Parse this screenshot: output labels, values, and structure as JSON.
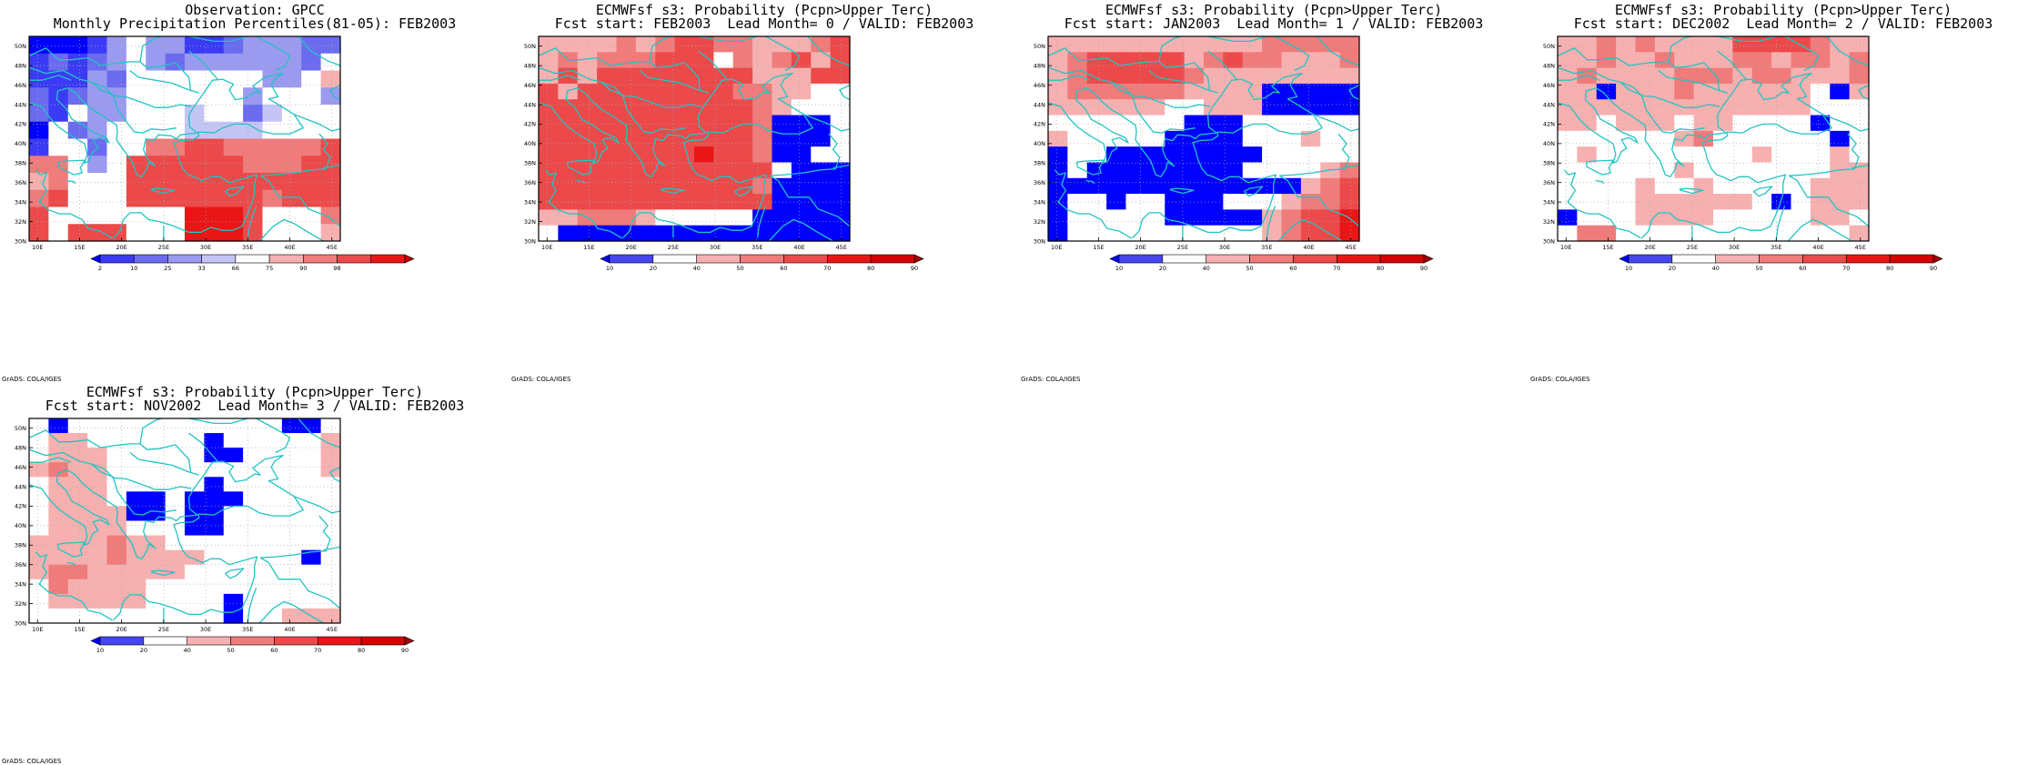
{
  "colors": {
    "coast": "#22c3c3",
    "grid": "#aaaaaa",
    "obs_scale": [
      "#0000ff",
      "#3b3bf5",
      "#6b6bf0",
      "#9a9af0",
      "#c4c4f5",
      "#ffffff",
      "#f7b0b0",
      "#f07b7b",
      "#ec4a4a",
      "#e81616",
      "#c00000"
    ],
    "prob_scale": [
      "#0000ff",
      "#4646f0",
      "#ffffff",
      "#f7b0b0",
      "#f07b7b",
      "#ec4a4a",
      "#e81616",
      "#d40000",
      "#a00000"
    ]
  },
  "map": {
    "lon_ticks": [
      "10E",
      "15E",
      "20E",
      "25E",
      "30E",
      "35E",
      "40E",
      "45E"
    ],
    "lat_ticks": [
      "30N",
      "32N",
      "34N",
      "36N",
      "38N",
      "40N",
      "42N",
      "44N",
      "46N",
      "48N",
      "50N"
    ],
    "credit": "GrADS: COLA/IGES"
  },
  "panels": [
    {
      "id": "obs",
      "title1": "Observation: GPCC",
      "title2": "Monthly Precipitation Percentiles(81-05): FEB2003",
      "cbar_labels": [
        "2",
        "10",
        "25",
        "33",
        "66",
        "75",
        "90",
        "98"
      ],
      "scale": "obs",
      "grid": [
        "AAABDFDDBBCDDDCC",
        "BCBCDFDCDDDDDDCF",
        "BBBDCFFFFFFFDDFG",
        "CBCDDFFFFFFDFFFD",
        "CBFDDFFFEFFCEFFF",
        "AFCDFFFFEEEEFFFF",
        "BFFCFFHHIIHHHHHI",
        "HHFDFIIIIIIHHHII",
        "GHFFFIIIIIIIIIII",
        "HIFFFIIIIIIIHIII",
        "IFFFFFFFJJJIFFFH",
        "IFIIIFFFJJJIFFFG"
      ]
    },
    {
      "id": "lm0",
      "title1": "ECMWFsf s3: Probability (Pcpn>Upper Terc)",
      "title2": "Fcst start: FEB2003  Lead Month= 0 / VALID: FEB2003",
      "cbar_labels": [
        "10",
        "20",
        "40",
        "50",
        "60",
        "70",
        "80",
        "90"
      ],
      "scale": "prob",
      "grid": [
        "DDDDEDEFFEEDDDEF",
        "DEDEEEFFFCEDEFDF",
        "DFDFFFFFFFFDDDFF",
        "FDFFFFFFFFEEDDCC",
        "FFFFFFFFFFFEDCCC",
        "FFFFFFFFFFFEAAAC",
        "FFFFFFFFFFFEAAAC",
        "FFFFFFFFGFFEAACC",
        "FFFFFFFFFFFFCAAA",
        "FFFFFFFFFFFEAAAA",
        "FFFFFFFFFFFFAAAA",
        "DDEEEDCCCCCAAAAA",
        "CAAAAAAAAAAAAAAA"
      ]
    },
    {
      "id": "lm1",
      "title1": "ECMWFsf s3: Probability (Pcpn>Upper Terc)",
      "title2": "Fcst start: JAN2003  Lead Month= 1 / VALID: FEB2003",
      "cbar_labels": [
        "10",
        "20",
        "40",
        "50",
        "60",
        "70",
        "80",
        "90"
      ],
      "scale": "prob",
      "grid": [
        "DDDDDDDDDDDEEEEE",
        "DEFFFFFDEFEEDDDE",
        "DEFFFFFEDDDDDDDD",
        "DEEEEEEDDDDAAAAA",
        "DDDDDDCCDDDAAAAA",
        "CCCCCCCAAACCCCCC",
        "DCCCCCAAAACCCDCC",
        "ACCAAAAAAAACCCCC",
        "ACAAAAAAAACCCCDE",
        "AAAAAAAAAAAAADEF",
        "ACCACCAAACCCDEEF",
        "ACCCCCAAAAADEFFG",
        "ACCCCCCCCCCDEFFG"
      ]
    },
    {
      "id": "lm2",
      "title1": "ECMWFsf s3: Probability (Pcpn>Upper Terc)",
      "title2": "Fcst start: DEC2002  Lead Month= 2 / VALID: FEB2003",
      "cbar_labels": [
        "10",
        "20",
        "40",
        "50",
        "60",
        "70",
        "80",
        "90"
      ],
      "scale": "prob",
      "grid": [
        "DDEDEDDDDFFFFEDD",
        "DDEDDEDDDEEDEEDE",
        "DEDDDDEEEDEEDDDE",
        "DDADDDEDDDDDDCAD",
        "DDDDDDDDDDDDDCCC",
        "DDCDDDCDDCCCCACC",
        "CCCCCCDECCCCCCAC",
        "CDCCCCCCCCDCCCDC",
        "CCCCCCDCCCCCCCDD",
        "CCCCDCCDCCCCCDDD",
        "CCCCDDDDDDCACDDD",
        "ACCCDDDDCCCCCDDC",
        "CEECCCCCCCCCCCCD"
      ]
    },
    {
      "id": "lm3",
      "title1": "ECMWFsf s3: Probability (Pcpn>Upper Terc)",
      "title2": "Fcst start: NOV2002  Lead Month= 3 / VALID: FEB2003",
      "cbar_labels": [
        "10",
        "20",
        "40",
        "50",
        "60",
        "70",
        "80",
        "90"
      ],
      "scale": "prob",
      "grid": [
        "CACCCCCCCCCCCAAC",
        "CDDCCCCCCACCCCCD",
        "CDDDCCCCCAACCCCD",
        "DEDDCCCCCCCCCCCD",
        "CDDDCCCCCACCCCCC",
        "CDDDCAACAAACCCCC",
        "CDDDDAACAACCCCCC",
        "CDDDDCCCAACCCCCC",
        "DDDDEDDCCCCCCCCC",
        "DDDDEDDDDCCCCCAC",
        "DEEDDDDDCCCCCCCC",
        "CEDDDDCCCCCCCCCC",
        "CDDDDDCCCCACCCCC",
        "CCCCCCCCCCACCDDD"
      ]
    }
  ]
}
